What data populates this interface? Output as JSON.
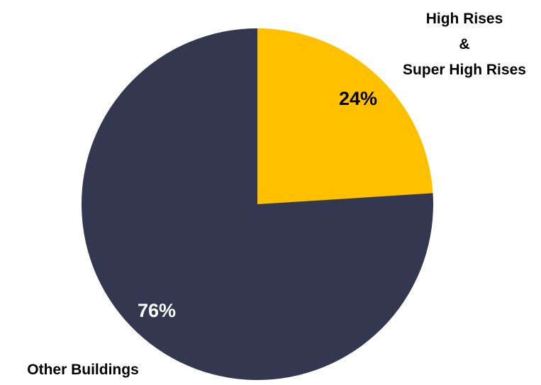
{
  "chart_data": {
    "type": "pie",
    "categories": [
      "High Rises\n&\nSuper High Rises",
      "Other Buildings"
    ],
    "values": [
      24,
      76
    ],
    "value_labels": [
      "24%",
      "76%"
    ],
    "colors": [
      "#ffc000",
      "#333850"
    ]
  }
}
